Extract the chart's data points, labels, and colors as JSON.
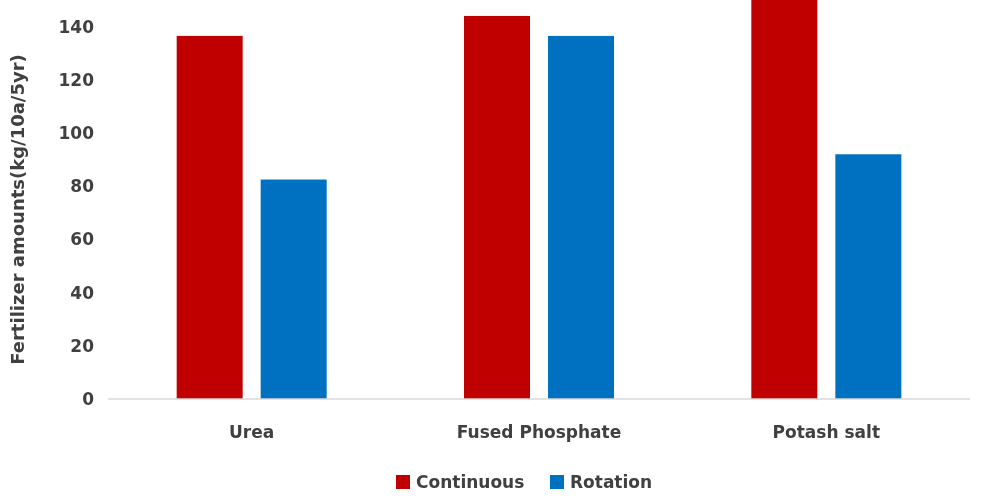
{
  "chart_data": {
    "type": "bar",
    "ylabel": "Fertilizer amounts(kg/10a/5yr)",
    "categories": [
      "Urea",
      "Fused Phosphate",
      "Potash salt"
    ],
    "series": [
      {
        "name": "Continuous",
        "color": "#c00000",
        "values": [
          136.5,
          144,
          150
        ]
      },
      {
        "name": "Rotation",
        "color": "#0070c0",
        "values": [
          82.5,
          136.5,
          92
        ]
      }
    ],
    "ylim": [
      0,
      150
    ],
    "yticks": [
      0,
      20,
      40,
      60,
      80,
      100,
      120,
      140
    ],
    "grid": false,
    "legend": "bottom"
  }
}
